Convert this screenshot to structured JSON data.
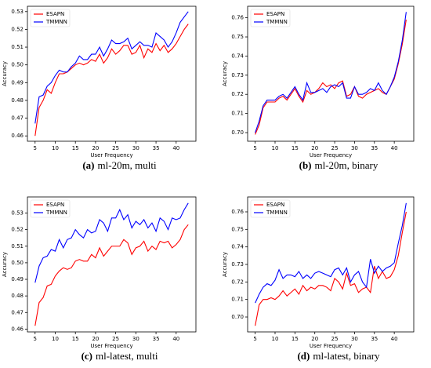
{
  "chart_data": [
    {
      "type": "line",
      "caption_label": "(a)",
      "caption": "ml-20m, multi",
      "xlabel": "User Frequency",
      "ylabel": "Accuracy",
      "legend": "upper left",
      "x": [
        5,
        6,
        7,
        8,
        9,
        10,
        11,
        12,
        13,
        14,
        15,
        16,
        17,
        18,
        19,
        20,
        21,
        22,
        23,
        24,
        25,
        26,
        27,
        28,
        29,
        30,
        31,
        32,
        33,
        34,
        35,
        36,
        37,
        38,
        39,
        40,
        41,
        42,
        43
      ],
      "xlim": [
        3.1,
        44.9
      ],
      "xticks": [
        5,
        10,
        15,
        20,
        25,
        30,
        35,
        40
      ],
      "ylim": [
        0.457,
        0.533
      ],
      "yticks": [
        0.46,
        0.47,
        0.48,
        0.49,
        {
          "value": 0.5,
          "label": "0.50"
        },
        0.51,
        0.52,
        0.53
      ],
      "series": [
        {
          "name": "ESAPN",
          "color": "#ff0000",
          "values": [
            0.46,
            0.476,
            0.48,
            0.486,
            0.484,
            0.49,
            0.495,
            0.495,
            0.496,
            0.498,
            0.5,
            0.501,
            0.5,
            0.501,
            0.503,
            0.502,
            0.506,
            0.501,
            0.504,
            0.509,
            0.506,
            0.508,
            0.511,
            0.511,
            0.506,
            0.507,
            0.511,
            0.504,
            0.509,
            0.507,
            0.512,
            0.508,
            0.511,
            0.507,
            0.509,
            0.512,
            0.516,
            0.52,
            0.523
          ]
        },
        {
          "name": "TMMNN",
          "color": "#0000ff",
          "values": [
            0.467,
            0.482,
            0.483,
            0.488,
            0.49,
            0.494,
            0.497,
            0.496,
            0.496,
            0.499,
            0.501,
            0.505,
            0.503,
            0.503,
            0.506,
            0.506,
            0.51,
            0.505,
            0.509,
            0.514,
            0.512,
            0.512,
            0.513,
            0.515,
            0.509,
            0.511,
            0.513,
            0.511,
            0.511,
            0.51,
            0.518,
            0.516,
            0.514,
            0.51,
            0.513,
            0.518,
            0.524,
            0.527,
            0.53
          ]
        }
      ]
    },
    {
      "type": "line",
      "caption_label": "(b)",
      "caption": "ml-20m, binary",
      "xlabel": "User Frequency",
      "ylabel": "Accuracy",
      "legend": "upper left",
      "x": [
        5,
        6,
        7,
        8,
        9,
        10,
        11,
        12,
        13,
        14,
        15,
        16,
        17,
        18,
        19,
        20,
        21,
        22,
        23,
        24,
        25,
        26,
        27,
        28,
        29,
        30,
        31,
        32,
        33,
        34,
        35,
        36,
        37,
        38,
        39,
        40,
        41,
        42,
        43
      ],
      "xlim": [
        3.1,
        44.9
      ],
      "xticks": [
        5,
        10,
        15,
        20,
        25,
        30,
        35,
        40
      ],
      "ylim": [
        0.6955,
        0.766
      ],
      "yticks": [
        {
          "value": 0.7,
          "label": "0.70"
        },
        0.71,
        0.72,
        0.73,
        0.74,
        0.75,
        0.76
      ],
      "series": [
        {
          "name": "ESAPN",
          "color": "#ff0000",
          "values": [
            0.699,
            0.704,
            0.713,
            0.716,
            0.716,
            0.716,
            0.718,
            0.719,
            0.717,
            0.72,
            0.723,
            0.719,
            0.716,
            0.722,
            0.72,
            0.721,
            0.723,
            0.726,
            0.724,
            0.725,
            0.723,
            0.726,
            0.727,
            0.719,
            0.72,
            0.724,
            0.719,
            0.718,
            0.72,
            0.721,
            0.722,
            0.723,
            0.721,
            0.72,
            0.724,
            0.728,
            0.736,
            0.746,
            0.759
          ]
        },
        {
          "name": "TMMNN",
          "color": "#0000ff",
          "values": [
            0.7,
            0.706,
            0.714,
            0.717,
            0.717,
            0.717,
            0.719,
            0.72,
            0.718,
            0.721,
            0.724,
            0.72,
            0.717,
            0.726,
            0.721,
            0.721,
            0.722,
            0.723,
            0.721,
            0.724,
            0.725,
            0.724,
            0.726,
            0.718,
            0.718,
            0.724,
            0.72,
            0.72,
            0.721,
            0.723,
            0.722,
            0.726,
            0.722,
            0.72,
            0.724,
            0.729,
            0.737,
            0.748,
            0.763
          ]
        }
      ]
    },
    {
      "type": "line",
      "caption_label": "(c)",
      "caption": "ml-latest, multi",
      "xlabel": "User Frequency",
      "ylabel": "Accuracy",
      "legend": "upper left",
      "x": [
        5,
        6,
        7,
        8,
        9,
        10,
        11,
        12,
        13,
        14,
        15,
        16,
        17,
        18,
        19,
        20,
        21,
        22,
        23,
        24,
        25,
        26,
        27,
        28,
        29,
        30,
        31,
        32,
        33,
        34,
        35,
        36,
        37,
        38,
        39,
        40,
        41,
        42,
        43
      ],
      "xlim": [
        3.1,
        44.9
      ],
      "xticks": [
        5,
        10,
        15,
        20,
        25,
        30,
        35,
        40
      ],
      "ylim": [
        0.4583,
        0.5397
      ],
      "yticks": [
        0.46,
        0.47,
        0.48,
        0.49,
        {
          "value": 0.5,
          "label": "0.50"
        },
        0.51,
        0.52,
        0.53
      ],
      "series": [
        {
          "name": "ESAPN",
          "color": "#ff0000",
          "values": [
            0.462,
            0.476,
            0.479,
            0.486,
            0.487,
            0.492,
            0.495,
            0.497,
            0.496,
            0.497,
            0.501,
            0.502,
            0.501,
            0.501,
            0.505,
            0.503,
            0.509,
            0.504,
            0.507,
            0.51,
            0.51,
            0.51,
            0.514,
            0.512,
            0.505,
            0.509,
            0.51,
            0.513,
            0.507,
            0.51,
            0.508,
            0.513,
            0.512,
            0.513,
            0.509,
            0.511,
            0.514,
            0.52,
            0.523
          ]
        },
        {
          "name": "TMMNN",
          "color": "#0000ff",
          "values": [
            0.488,
            0.498,
            0.503,
            0.504,
            0.508,
            0.507,
            0.514,
            0.509,
            0.514,
            0.515,
            0.52,
            0.517,
            0.515,
            0.52,
            0.518,
            0.519,
            0.526,
            0.524,
            0.519,
            0.527,
            0.527,
            0.532,
            0.526,
            0.529,
            0.521,
            0.525,
            0.523,
            0.526,
            0.521,
            0.524,
            0.519,
            0.527,
            0.525,
            0.52,
            0.527,
            0.526,
            0.527,
            0.532,
            0.536
          ]
        }
      ]
    },
    {
      "type": "line",
      "caption_label": "(d)",
      "caption": "ml-latest, binary",
      "xlabel": "User Frequency",
      "ylabel": "Accuracy",
      "legend": "upper left",
      "x": [
        5,
        6,
        7,
        8,
        9,
        10,
        11,
        12,
        13,
        14,
        15,
        16,
        17,
        18,
        19,
        20,
        21,
        22,
        23,
        24,
        25,
        26,
        27,
        28,
        29,
        30,
        31,
        32,
        33,
        34,
        35,
        36,
        37,
        38,
        39,
        40,
        41,
        42,
        43
      ],
      "xlim": [
        3.1,
        44.9
      ],
      "xticks": [
        5,
        10,
        15,
        20,
        25,
        30,
        35,
        40
      ],
      "ylim": [
        0.6915,
        0.7685
      ],
      "yticks": [
        {
          "value": 0.7,
          "label": "0.70"
        },
        0.71,
        0.72,
        0.73,
        0.74,
        0.75,
        0.76
      ],
      "series": [
        {
          "name": "ESAPN",
          "color": "#ff0000",
          "values": [
            0.695,
            0.707,
            0.71,
            0.71,
            0.711,
            0.71,
            0.712,
            0.715,
            0.712,
            0.714,
            0.716,
            0.713,
            0.718,
            0.715,
            0.717,
            0.716,
            0.718,
            0.718,
            0.717,
            0.715,
            0.722,
            0.72,
            0.716,
            0.725,
            0.718,
            0.719,
            0.714,
            0.716,
            0.717,
            0.714,
            0.729,
            0.722,
            0.726,
            0.722,
            0.723,
            0.727,
            0.735,
            0.748,
            0.76
          ]
        },
        {
          "name": "TMMNN",
          "color": "#0000ff",
          "values": [
            0.708,
            0.713,
            0.717,
            0.719,
            0.718,
            0.721,
            0.727,
            0.722,
            0.724,
            0.724,
            0.723,
            0.726,
            0.722,
            0.724,
            0.722,
            0.725,
            0.726,
            0.725,
            0.724,
            0.723,
            0.727,
            0.728,
            0.724,
            0.728,
            0.72,
            0.724,
            0.726,
            0.72,
            0.717,
            0.733,
            0.725,
            0.729,
            0.726,
            0.728,
            0.729,
            0.731,
            0.742,
            0.752,
            0.765
          ]
        }
      ]
    }
  ]
}
